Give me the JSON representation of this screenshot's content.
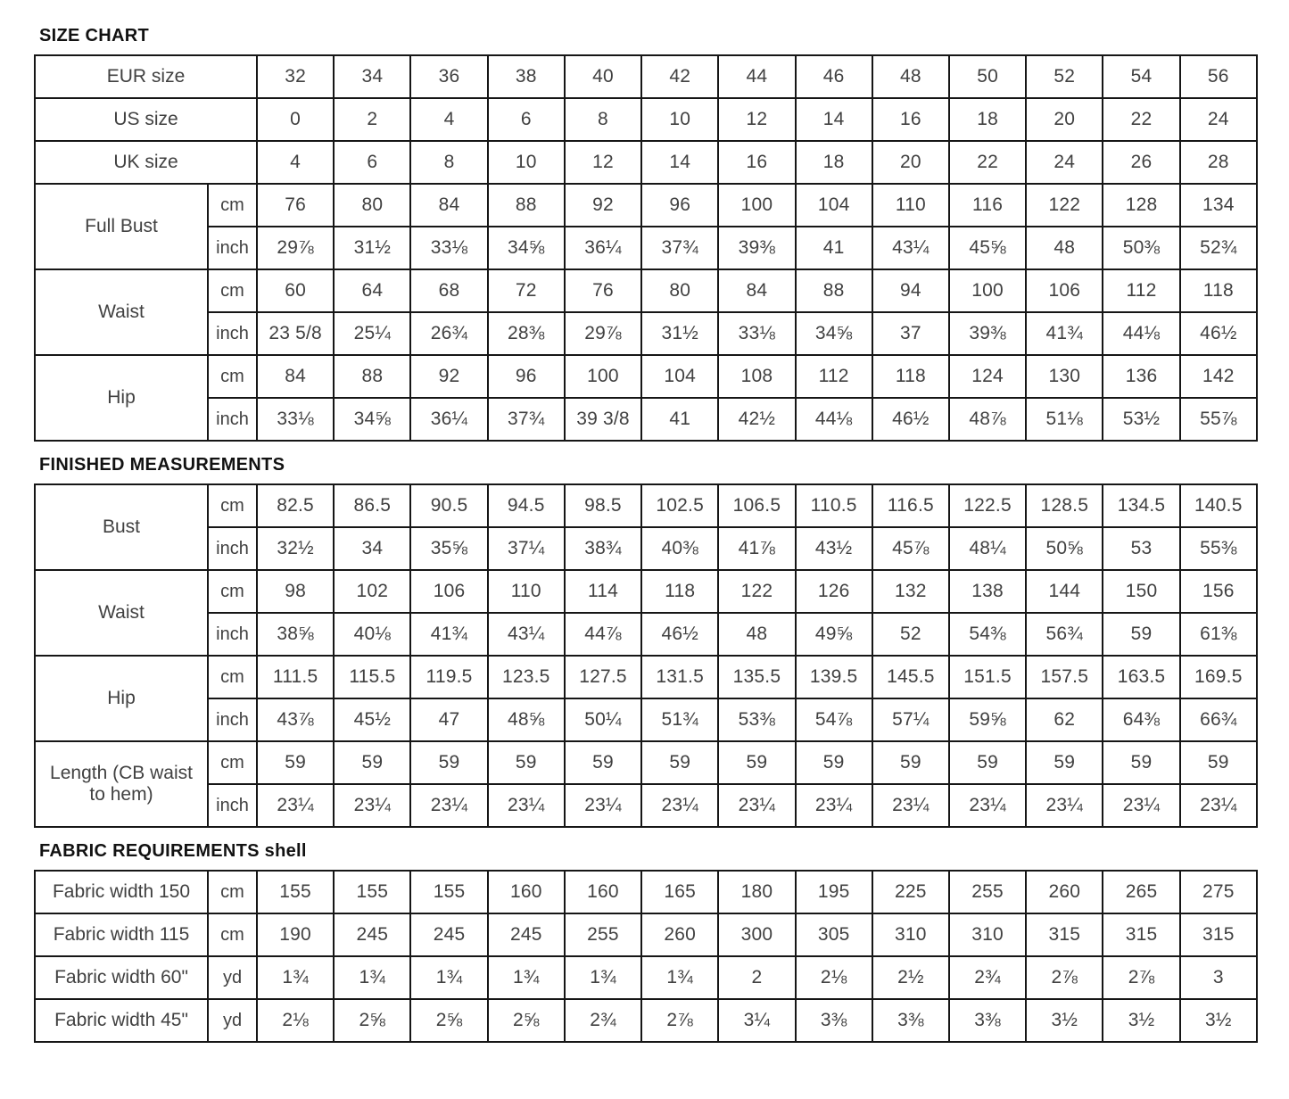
{
  "colors": {
    "border": "#161616",
    "text": "#414141",
    "heading": "#121212",
    "background": "#ffffff"
  },
  "sections": [
    {
      "title": "SIZE CHART",
      "rows": [
        {
          "label": "EUR size",
          "values": [
            "32",
            "34",
            "36",
            "38",
            "40",
            "42",
            "44",
            "46",
            "48",
            "50",
            "52",
            "54",
            "56"
          ]
        },
        {
          "label": "US size",
          "values": [
            "0",
            "2",
            "4",
            "6",
            "8",
            "10",
            "12",
            "14",
            "16",
            "18",
            "20",
            "22",
            "24"
          ]
        },
        {
          "label": "UK size",
          "values": [
            "4",
            "6",
            "8",
            "10",
            "12",
            "14",
            "16",
            "18",
            "20",
            "22",
            "24",
            "26",
            "28"
          ]
        },
        {
          "label": "Full Bust",
          "subrows": [
            {
              "unit": "cm",
              "values": [
                "76",
                "80",
                "84",
                "88",
                "92",
                "96",
                "100",
                "104",
                "110",
                "116",
                "122",
                "128",
                "134"
              ]
            },
            {
              "unit": "inch",
              "values": [
                "29⅞",
                "31½",
                "33⅛",
                "34⅝",
                "36¼",
                "37¾",
                "39⅜",
                "41",
                "43¼",
                "45⅝",
                "48",
                "50⅜",
                "52¾"
              ]
            }
          ]
        },
        {
          "label": "Waist",
          "subrows": [
            {
              "unit": "cm",
              "values": [
                "60",
                "64",
                "68",
                "72",
                "76",
                "80",
                "84",
                "88",
                "94",
                "100",
                "106",
                "112",
                "118"
              ]
            },
            {
              "unit": "inch",
              "values": [
                "23 5/8",
                "25¼",
                "26¾",
                "28⅜",
                "29⅞",
                "31½",
                "33⅛",
                "34⅝",
                "37",
                "39⅜",
                "41¾",
                "44⅛",
                "46½"
              ]
            }
          ]
        },
        {
          "label": "Hip",
          "subrows": [
            {
              "unit": "cm",
              "values": [
                "84",
                "88",
                "92",
                "96",
                "100",
                "104",
                "108",
                "112",
                "118",
                "124",
                "130",
                "136",
                "142"
              ]
            },
            {
              "unit": "inch",
              "values": [
                "33⅛",
                "34⅝",
                "36¼",
                "37¾",
                "39 3/8",
                "41",
                "42½",
                "44⅛",
                "46½",
                "48⅞",
                "51⅛",
                "53½",
                "55⅞"
              ]
            }
          ]
        }
      ]
    },
    {
      "title": "FINISHED MEASUREMENTS",
      "rows": [
        {
          "label": "Bust",
          "subrows": [
            {
              "unit": "cm",
              "values": [
                "82.5",
                "86.5",
                "90.5",
                "94.5",
                "98.5",
                "102.5",
                "106.5",
                "110.5",
                "116.5",
                "122.5",
                "128.5",
                "134.5",
                "140.5"
              ]
            },
            {
              "unit": "inch",
              "values": [
                "32½",
                "34",
                "35⅝",
                "37¼",
                "38¾",
                "40⅜",
                "41⅞",
                "43½",
                "45⅞",
                "48¼",
                "50⅝",
                "53",
                "55⅜"
              ]
            }
          ]
        },
        {
          "label": "Waist",
          "subrows": [
            {
              "unit": "cm",
              "values": [
                "98",
                "102",
                "106",
                "110",
                "114",
                "118",
                "122",
                "126",
                "132",
                "138",
                "144",
                "150",
                "156"
              ]
            },
            {
              "unit": "inch",
              "values": [
                "38⅝",
                "40⅛",
                "41¾",
                "43¼",
                "44⅞",
                "46½",
                "48",
                "49⅝",
                "52",
                "54⅜",
                "56¾",
                "59",
                "61⅜"
              ]
            }
          ]
        },
        {
          "label": "Hip",
          "subrows": [
            {
              "unit": "cm",
              "values": [
                "111.5",
                "115.5",
                "119.5",
                "123.5",
                "127.5",
                "131.5",
                "135.5",
                "139.5",
                "145.5",
                "151.5",
                "157.5",
                "163.5",
                "169.5"
              ]
            },
            {
              "unit": "inch",
              "values": [
                "43⅞",
                "45½",
                "47",
                "48⅝",
                "50¼",
                "51¾",
                "53⅜",
                "54⅞",
                "57¼",
                "59⅝",
                "62",
                "64⅜",
                "66¾"
              ]
            }
          ]
        },
        {
          "label": "Length (CB waist to hem)",
          "subrows": [
            {
              "unit": "cm",
              "values": [
                "59",
                "59",
                "59",
                "59",
                "59",
                "59",
                "59",
                "59",
                "59",
                "59",
                "59",
                "59",
                "59"
              ]
            },
            {
              "unit": "inch",
              "values": [
                "23¼",
                "23¼",
                "23¼",
                "23¼",
                "23¼",
                "23¼",
                "23¼",
                "23¼",
                "23¼",
                "23¼",
                "23¼",
                "23¼",
                "23¼"
              ]
            }
          ]
        }
      ]
    },
    {
      "title": "FABRIC REQUIREMENTS shell",
      "rows": [
        {
          "label": "Fabric width 150",
          "unit": "cm",
          "values": [
            "155",
            "155",
            "155",
            "160",
            "160",
            "165",
            "180",
            "195",
            "225",
            "255",
            "260",
            "265",
            "275"
          ]
        },
        {
          "label": "Fabric width 115",
          "unit": "cm",
          "values": [
            "190",
            "245",
            "245",
            "245",
            "255",
            "260",
            "300",
            "305",
            "310",
            "310",
            "315",
            "315",
            "315"
          ]
        },
        {
          "label": "Fabric width 60\"",
          "unit": "yd",
          "values": [
            "1¾",
            "1¾",
            "1¾",
            "1¾",
            "1¾",
            "1¾",
            "2",
            "2⅛",
            "2½",
            "2¾",
            "2⅞",
            "2⅞",
            "3"
          ]
        },
        {
          "label": "Fabric width 45\"",
          "unit": "yd",
          "values": [
            "2⅛",
            "2⅝",
            "2⅝",
            "2⅝",
            "2¾",
            "2⅞",
            "3¼",
            "3⅜",
            "3⅜",
            "3⅜",
            "3½",
            "3½",
            "3½"
          ]
        }
      ]
    }
  ]
}
